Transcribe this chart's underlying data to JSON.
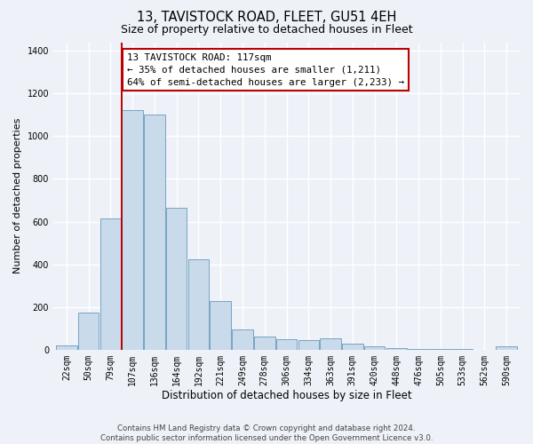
{
  "title": "13, TAVISTOCK ROAD, FLEET, GU51 4EH",
  "subtitle": "Size of property relative to detached houses in Fleet",
  "xlabel": "Distribution of detached houses by size in Fleet",
  "ylabel": "Number of detached properties",
  "categories": [
    "22sqm",
    "50sqm",
    "79sqm",
    "107sqm",
    "136sqm",
    "164sqm",
    "192sqm",
    "221sqm",
    "249sqm",
    "278sqm",
    "306sqm",
    "334sqm",
    "363sqm",
    "391sqm",
    "420sqm",
    "448sqm",
    "476sqm",
    "505sqm",
    "533sqm",
    "562sqm",
    "590sqm"
  ],
  "values": [
    20,
    175,
    615,
    1120,
    1100,
    665,
    425,
    230,
    95,
    60,
    50,
    45,
    55,
    28,
    18,
    8,
    4,
    4,
    2,
    1,
    18
  ],
  "bar_color": "#c9daea",
  "bar_edge_color": "#6899bb",
  "property_line_bin": 3,
  "annotation_line1": "13 TAVISTOCK ROAD: 117sqm",
  "annotation_line2": "← 35% of detached houses are smaller (1,211)",
  "annotation_line3": "64% of semi-detached houses are larger (2,233) →",
  "annotation_box_facecolor": "#ffffff",
  "annotation_box_edgecolor": "#bb0000",
  "line_color": "#bb0000",
  "footer_line1": "Contains HM Land Registry data © Crown copyright and database right 2024.",
  "footer_line2": "Contains public sector information licensed under the Open Government Licence v3.0.",
  "ylim": [
    0,
    1440
  ],
  "yticks": [
    0,
    200,
    400,
    600,
    800,
    1000,
    1200,
    1400
  ],
  "bg_color": "#eef2f8",
  "grid_color": "#ffffff",
  "title_fontsize": 10.5,
  "subtitle_fontsize": 9,
  "xlabel_fontsize": 8.5,
  "ylabel_fontsize": 8,
  "tick_fontsize": 7,
  "annot_fontsize": 7.8,
  "footer_fontsize": 6.2
}
